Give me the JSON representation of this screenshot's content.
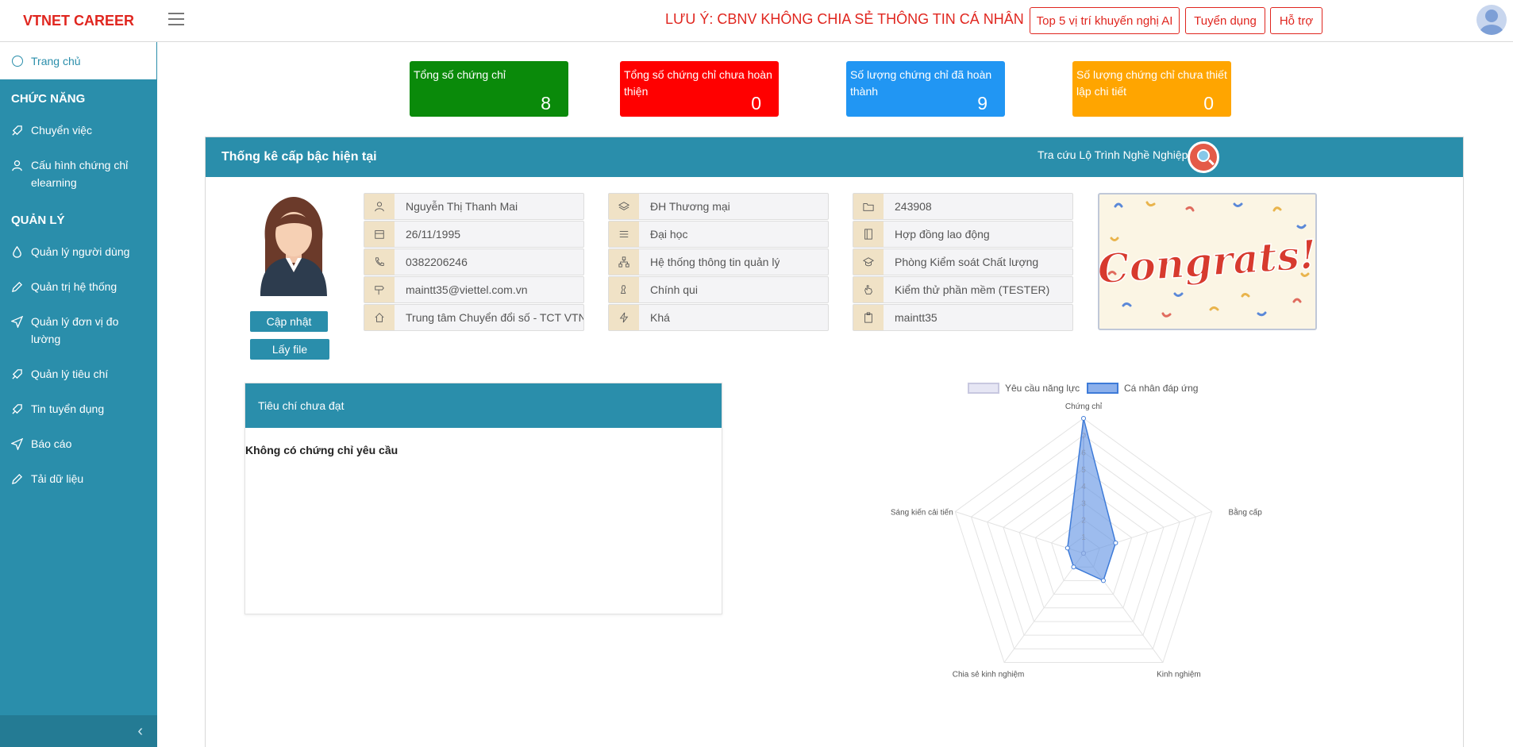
{
  "app": {
    "brand": "VTNET CAREER",
    "warning": "LƯU Ý: CBNV KHÔNG CHIA SẺ THÔNG TIN CÁ NHÂN",
    "top_buttons": [
      "Top 5 vị trí khuyến nghị AI",
      "Tuyển dụng",
      "Hỗ trợ"
    ]
  },
  "sidebar": {
    "home": "Trang chủ",
    "sections": [
      {
        "title": "CHỨC NĂNG",
        "items": [
          {
            "label": "Chuyển việc",
            "icon": "rocket-icon"
          },
          {
            "label": "Cấu hình chứng chỉ elearning",
            "icon": "user-icon"
          }
        ]
      },
      {
        "title": "QUẢN LÝ",
        "items": [
          {
            "label": "Quản lý người dùng",
            "icon": "drop-icon"
          },
          {
            "label": "Quản trị hệ thống",
            "icon": "pencil-icon"
          },
          {
            "label": "Quản lý đơn vị đo lường",
            "icon": "send-icon"
          },
          {
            "label": "Quản lý tiêu chí",
            "icon": "rocket-icon"
          },
          {
            "label": "Tin tuyển dụng",
            "icon": "rocket-icon"
          },
          {
            "label": "Báo cáo",
            "icon": "send-icon"
          },
          {
            "label": "Tải dữ liệu",
            "icon": "pencil-icon"
          }
        ]
      }
    ],
    "collapse_icon": "chevron-left-icon"
  },
  "stats": [
    {
      "label": "Tổng số chứng chỉ",
      "value": "8",
      "color": "#0a8a0a"
    },
    {
      "label": "Tổng số chứng chỉ chưa hoàn thiện",
      "value": "0",
      "color": "#ff0000"
    },
    {
      "label": "Số lượng chứng chỉ đã hoàn thành",
      "value": "9",
      "color": "#2196f3"
    },
    {
      "label": "Số lượng chứng chỉ chưa thiết lập chi tiết",
      "value": "0",
      "color": "#ffa500"
    }
  ],
  "panel": {
    "title": "Thống kê cấp bậc hiện tại",
    "lookup": "Tra cứu Lộ Trình Nghề Nghiệp"
  },
  "profile": {
    "update_button": "Cập nhật",
    "file_button": "Lấy file",
    "col1": [
      "Nguyễn Thị Thanh Mai",
      "26/11/1995",
      "0382206246",
      "maintt35@viettel.com.vn",
      "Trung tâm Chuyển đổi số - TCT VTNet"
    ],
    "col2": [
      "ĐH Thương mại",
      "Đại học",
      "Hệ thống thông tin quản lý",
      "Chính qui",
      "Khá"
    ],
    "col3": [
      "243908",
      "Hợp đồng lao động",
      "Phòng Kiểm soát Chất lượng",
      "Kiểm thử phần mềm (TESTER)",
      "maintt35"
    ],
    "congrats_text": "Congrats!"
  },
  "criteria": {
    "title": "Tiêu chí chưa đạt",
    "empty_text": "Không có chứng chỉ yêu cầu"
  },
  "chart_data": {
    "type": "radar",
    "categories": [
      "Chứng chỉ",
      "Bằng cấp",
      "Kinh nghiệm",
      "Chia sẻ kinh nghiệm",
      "Sáng kiến cải tiến"
    ],
    "series": [
      {
        "name": "Yêu cầu năng lực",
        "values": [
          7,
          0,
          0,
          0,
          0
        ]
      },
      {
        "name": "Cá nhân đáp ứng",
        "values": [
          8,
          2,
          2,
          1,
          1
        ]
      }
    ],
    "ticks": [
      "1",
      "2",
      "3",
      "4",
      "5",
      "6",
      "7"
    ],
    "rmax": 8,
    "colors": {
      "required": "#dcdcf0",
      "actual": "#5b8fe3"
    },
    "legend": "top"
  }
}
